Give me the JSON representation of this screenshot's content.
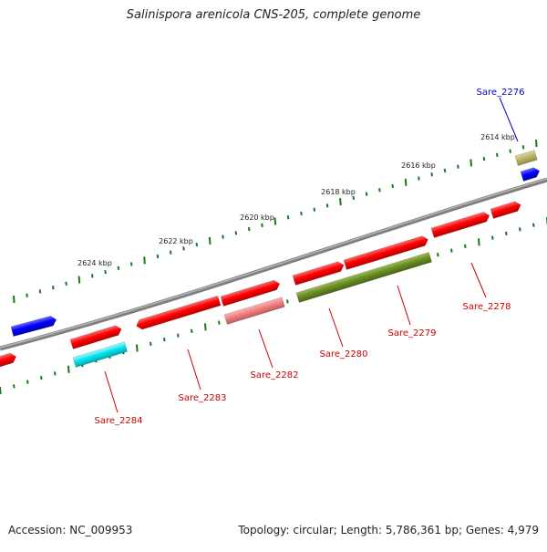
{
  "title": "Salinispora arenicola CNS-205, complete genome",
  "footer": {
    "accession": "Accession: NC_009953",
    "summary": "Topology: circular; Length: 5,786,361 bp; Genes: 4,979"
  },
  "colors": {
    "backbone": "#7f7f7f",
    "ticks": "#1a7a1a",
    "cds_forward": "#ff0000",
    "label_red": "#cc0000",
    "label_blue": "#0000cc",
    "cds_blue": "#0000ff",
    "cds_cyan": "#00e5ee",
    "cds_olive": "#6b8e23",
    "cds_pink": "#f08080",
    "cds_khaki": "#bdb76b"
  },
  "scale_labels": [
    "2614 kbp",
    "2616 kbp",
    "2618 kbp",
    "2620 kbp",
    "2622 kbp",
    "2624 kbp"
  ],
  "gene_labels": [
    "Sare_2276",
    "Sare_2278",
    "Sare_2279",
    "Sare_2280",
    "Sare_2282",
    "Sare_2283",
    "Sare_2284"
  ]
}
